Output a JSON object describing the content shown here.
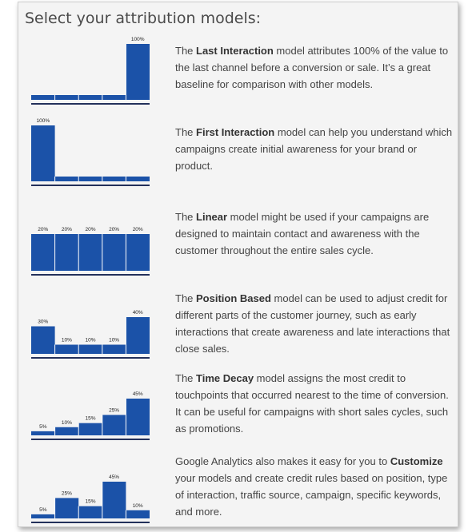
{
  "page_title": "Select your attribution models:",
  "colors": {
    "bar": "#1b52a8",
    "text": "#444444"
  },
  "models": [
    {
      "id": "last-interaction",
      "labels": [
        "",
        "",
        "",
        "",
        "100%"
      ],
      "values": [
        10,
        10,
        10,
        10,
        100
      ],
      "text_pre": "The ",
      "name": "Last Interaction",
      "text_post": " model attributes 100% of the value to the last channel before a conversion or sale. It’s a great baseline for comparison with other models."
    },
    {
      "id": "first-interaction",
      "labels": [
        "100%",
        "",
        "",
        "",
        ""
      ],
      "values": [
        100,
        10,
        10,
        10,
        10
      ],
      "text_pre": "The ",
      "name": "First Interaction",
      "text_post": " model can help you understand which campaigns create initial awareness for your brand or product."
    },
    {
      "id": "linear",
      "labels": [
        "20%",
        "20%",
        "20%",
        "20%",
        "20%"
      ],
      "values": [
        20,
        20,
        20,
        20,
        20
      ],
      "text_pre": "The ",
      "name": "Linear",
      "text_post": " model might be used if your campaigns are designed to maintain contact and awareness with the customer throughout the entire sales cycle."
    },
    {
      "id": "position-based",
      "labels": [
        "30%",
        "10%",
        "10%",
        "10%",
        "40%"
      ],
      "values": [
        30,
        10,
        10,
        10,
        40
      ],
      "text_pre": "The ",
      "name": "Position Based",
      "text_post": " model can be used to adjust credit for different parts of the customer journey, such as early interactions that create awareness and late interactions that close sales."
    },
    {
      "id": "time-decay",
      "labels": [
        "5%",
        "10%",
        "15%",
        "25%",
        "45%"
      ],
      "values": [
        5,
        10,
        15,
        25,
        45
      ],
      "text_pre": "The ",
      "name": "Time Decay",
      "text_post": " model assigns the most credit to touchpoints that occurred nearest to the time of conversion. It can be useful for campaigns with short sales cycles, such as promotions."
    },
    {
      "id": "customize",
      "labels": [
        "5%",
        "25%",
        "15%",
        "45%",
        "10%"
      ],
      "values": [
        5,
        25,
        15,
        45,
        10
      ],
      "text_pre": "Google Analytics also makes it easy for you to ",
      "name": "Customize",
      "text_post": " your models and create credit rules based on position, type of interaction, traffic source, campaign, specific keywords, and more."
    }
  ]
}
